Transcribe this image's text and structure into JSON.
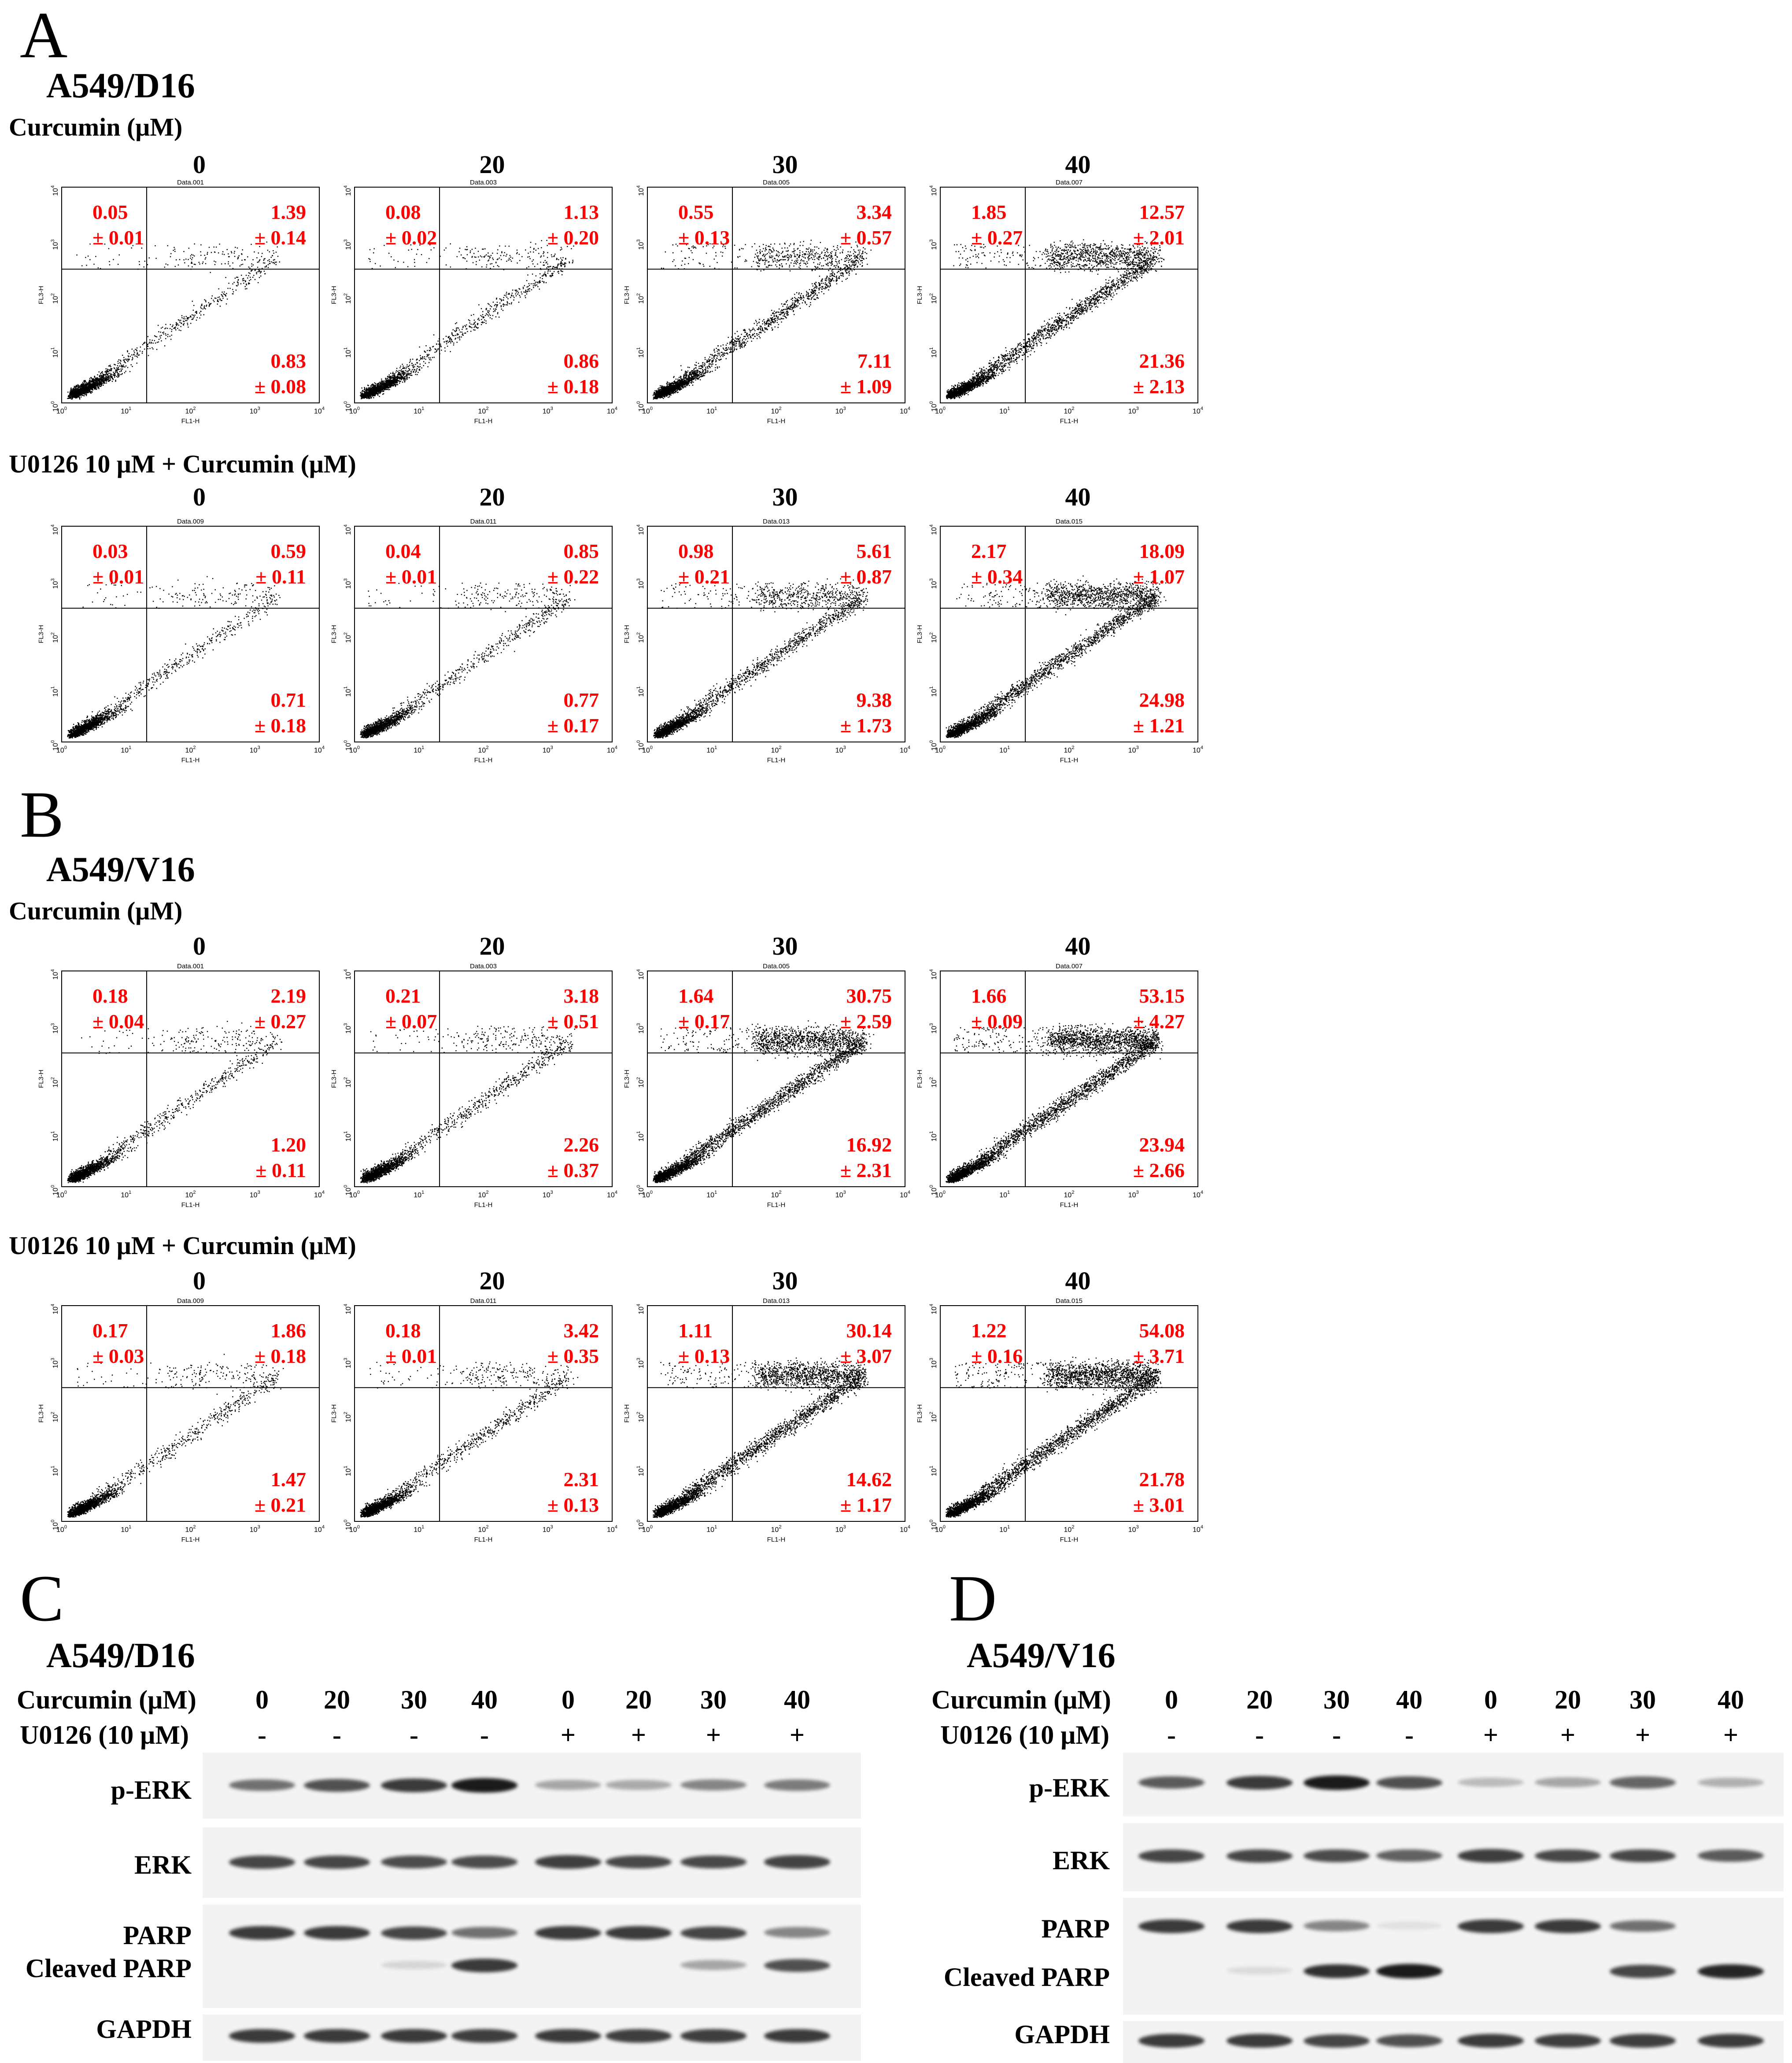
{
  "figure": {
    "panelA": {
      "letter": "A",
      "title": "A549/D16",
      "rows": [
        {
          "label": "Curcumin (μM)",
          "plots": [
            {
              "conc": "0",
              "header": "Data.001",
              "ul": [
                "0.05",
                "± 0.01"
              ],
              "ur": [
                "1.39",
                "± 0.14"
              ],
              "lr": [
                "0.83",
                "± 0.08"
              ],
              "density": 0.2
            },
            {
              "conc": "20",
              "header": "Data.003",
              "ul": [
                "0.08",
                "± 0.02"
              ],
              "ur": [
                "1.13",
                "± 0.20"
              ],
              "lr": [
                "0.86",
                "± 0.18"
              ],
              "density": 0.25
            },
            {
              "conc": "30",
              "header": "Data.005",
              "ul": [
                "0.55",
                "± 0.13"
              ],
              "ur": [
                "3.34",
                "± 0.57"
              ],
              "lr": [
                "7.11",
                "± 1.09"
              ],
              "density": 0.5
            },
            {
              "conc": "40",
              "header": "Data.007",
              "ul": [
                "1.85",
                "± 0.27"
              ],
              "ur": [
                "12.57",
                "± 2.01"
              ],
              "lr": [
                "21.36",
                "± 2.13"
              ],
              "density": 0.75
            }
          ]
        },
        {
          "label": "U0126 10 μM  + Curcumin (μM)",
          "plots": [
            {
              "conc": "0",
              "header": "Data.009",
              "ul": [
                "0.03",
                "± 0.01"
              ],
              "ur": [
                "0.59",
                "± 0.11"
              ],
              "lr": [
                "0.71",
                "± 0.18"
              ],
              "density": 0.2
            },
            {
              "conc": "20",
              "header": "Data.011",
              "ul": [
                "0.04",
                "± 0.01"
              ],
              "ur": [
                "0.85",
                "± 0.22"
              ],
              "lr": [
                "0.77",
                "± 0.17"
              ],
              "density": 0.25
            },
            {
              "conc": "30",
              "header": "Data.013",
              "ul": [
                "0.98",
                "± 0.21"
              ],
              "ur": [
                "5.61",
                "± 0.87"
              ],
              "lr": [
                "9.38",
                "± 1.73"
              ],
              "density": 0.55
            },
            {
              "conc": "40",
              "header": "Data.015",
              "ul": [
                "2.17",
                "± 0.34"
              ],
              "ur": [
                "18.09",
                "± 1.07"
              ],
              "lr": [
                "24.98",
                "± 1.21"
              ],
              "density": 0.8
            }
          ]
        }
      ]
    },
    "panelB": {
      "letter": "B",
      "title": "A549/V16",
      "rows": [
        {
          "label": "Curcumin (μM)",
          "plots": [
            {
              "conc": "0",
              "header": "Data.001",
              "ul": [
                "0.18",
                "± 0.04"
              ],
              "ur": [
                "2.19",
                "± 0.27"
              ],
              "lr": [
                "1.20",
                "± 0.11"
              ],
              "density": 0.25
            },
            {
              "conc": "20",
              "header": "Data.003",
              "ul": [
                "0.21",
                "± 0.07"
              ],
              "ur": [
                "3.18",
                "± 0.51"
              ],
              "lr": [
                "2.26",
                "± 0.37"
              ],
              "density": 0.3
            },
            {
              "conc": "30",
              "header": "Data.005",
              "ul": [
                "1.64",
                "± 0.17"
              ],
              "ur": [
                "30.75",
                "± 2.59"
              ],
              "lr": [
                "16.92",
                "± 2.31"
              ],
              "density": 0.85
            },
            {
              "conc": "40",
              "header": "Data.007",
              "ul": [
                "1.66",
                "± 0.09"
              ],
              "ur": [
                "53.15",
                "± 4.27"
              ],
              "lr": [
                "23.94",
                "± 2.66"
              ],
              "density": 0.95
            }
          ]
        },
        {
          "label": "U0126 10 μM  + Curcumin (μM)",
          "plots": [
            {
              "conc": "0",
              "header": "Data.009",
              "ul": [
                "0.17",
                "± 0.03"
              ],
              "ur": [
                "1.86",
                "± 0.18"
              ],
              "lr": [
                "1.47",
                "± 0.21"
              ],
              "density": 0.25
            },
            {
              "conc": "20",
              "header": "Data.011",
              "ul": [
                "0.18",
                "± 0.01"
              ],
              "ur": [
                "3.42",
                "± 0.35"
              ],
              "lr": [
                "2.31",
                "± 0.13"
              ],
              "density": 0.3
            },
            {
              "conc": "30",
              "header": "Data.013",
              "ul": [
                "1.11",
                "± 0.13"
              ],
              "ur": [
                "30.14",
                "± 3.07"
              ],
              "lr": [
                "14.62",
                "± 1.17"
              ],
              "density": 0.85
            },
            {
              "conc": "40",
              "header": "Data.015",
              "ul": [
                "1.22",
                "± 0.16"
              ],
              "ur": [
                "54.08",
                "± 3.71"
              ],
              "lr": [
                "21.78",
                "± 3.01"
              ],
              "density": 0.95
            }
          ]
        }
      ]
    },
    "axes": {
      "xlabel": "FL1-H",
      "ylabel": "FL3-H",
      "ticks": [
        "10",
        "10",
        "10",
        "10",
        "10"
      ],
      "tick_exponents": [
        "0",
        "1",
        "2",
        "3",
        "4"
      ]
    },
    "panelC": {
      "letter": "C",
      "title": "A549/D16",
      "curcumin_label": "Curcumin (μM)",
      "u0126_label": "U0126 (10 μM)",
      "curcumin": [
        "0",
        "20",
        "30",
        "40",
        "0",
        "20",
        "30",
        "40"
      ],
      "u0126": [
        "-",
        "-",
        "-",
        "-",
        "+",
        "+",
        "+",
        "+"
      ],
      "bands": {
        "perk": {
          "label": "p-ERK",
          "intensity": [
            0.55,
            0.7,
            0.8,
            0.95,
            0.3,
            0.28,
            0.45,
            0.5
          ]
        },
        "erk": {
          "label": "ERK",
          "intensity": [
            0.75,
            0.75,
            0.72,
            0.72,
            0.78,
            0.74,
            0.74,
            0.76
          ]
        },
        "parp": {
          "label": "PARP",
          "intensity": [
            0.8,
            0.8,
            0.75,
            0.55,
            0.8,
            0.8,
            0.75,
            0.45
          ]
        },
        "cleaved": {
          "label": "Cleaved PARP",
          "intensity": [
            0,
            0,
            0.08,
            0.8,
            0,
            0,
            0.3,
            0.7
          ]
        },
        "gapdh": {
          "label": "GAPDH",
          "intensity": [
            0.8,
            0.8,
            0.8,
            0.78,
            0.8,
            0.78,
            0.78,
            0.8
          ]
        }
      }
    },
    "panelD": {
      "letter": "D",
      "title": "A549/V16",
      "curcumin_label": "Curcumin (μM)",
      "u0126_label": "U0126 (10 μM)",
      "curcumin": [
        "0",
        "20",
        "30",
        "40",
        "0",
        "20",
        "30",
        "40"
      ],
      "u0126": [
        "-",
        "-",
        "-",
        "-",
        "+",
        "+",
        "+",
        "+"
      ],
      "bands": {
        "perk": {
          "label": "p-ERK",
          "intensity": [
            0.65,
            0.8,
            0.95,
            0.7,
            0.2,
            0.3,
            0.6,
            0.25
          ]
        },
        "erk": {
          "label": "ERK",
          "intensity": [
            0.75,
            0.75,
            0.72,
            0.62,
            0.78,
            0.74,
            0.74,
            0.65
          ]
        },
        "parp": {
          "label": "PARP",
          "intensity": [
            0.8,
            0.8,
            0.45,
            0.03,
            0.8,
            0.8,
            0.55,
            0
          ]
        },
        "cleaved": {
          "label": "Cleaved PARP",
          "intensity": [
            0,
            0.05,
            0.85,
            0.95,
            0,
            0,
            0.75,
            0.9
          ]
        },
        "gapdh": {
          "label": "GAPDH",
          "intensity": [
            0.8,
            0.8,
            0.75,
            0.7,
            0.8,
            0.78,
            0.78,
            0.8
          ]
        }
      }
    }
  }
}
